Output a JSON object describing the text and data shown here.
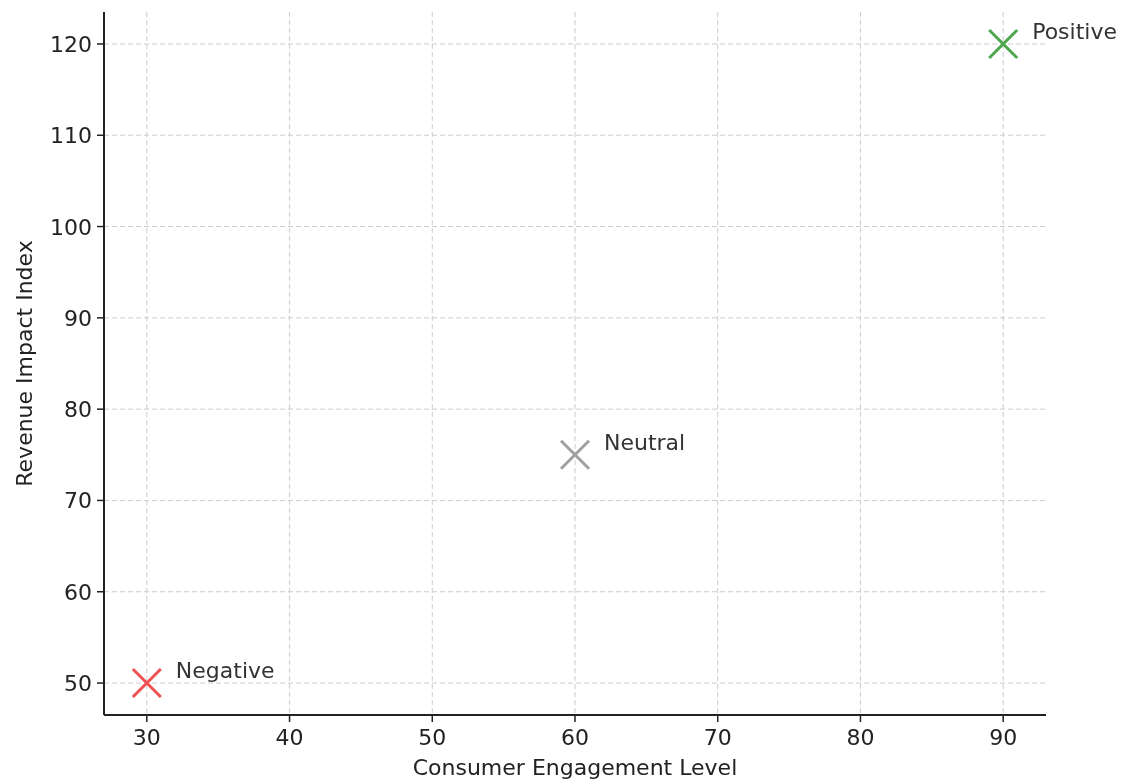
{
  "chart_data": {
    "type": "scatter",
    "xlabel": "Consumer Engagement Level",
    "ylabel": "Revenue Impact Index",
    "xlim": [
      27,
      93
    ],
    "ylim": [
      46.5,
      123.5
    ],
    "xticks": [
      30,
      40,
      50,
      60,
      70,
      80,
      90
    ],
    "yticks": [
      50,
      60,
      70,
      80,
      90,
      100,
      110,
      120
    ],
    "grid": true,
    "marker": "cross",
    "series": [
      {
        "name": "Negative",
        "color": "#f05050",
        "x": [
          30
        ],
        "values": [
          50
        ]
      },
      {
        "name": "Neutral",
        "color": "#a0a0a0",
        "x": [
          60
        ],
        "values": [
          75
        ]
      },
      {
        "name": "Positive",
        "color": "#4ca64c",
        "x": [
          90
        ],
        "values": [
          120
        ]
      }
    ]
  }
}
